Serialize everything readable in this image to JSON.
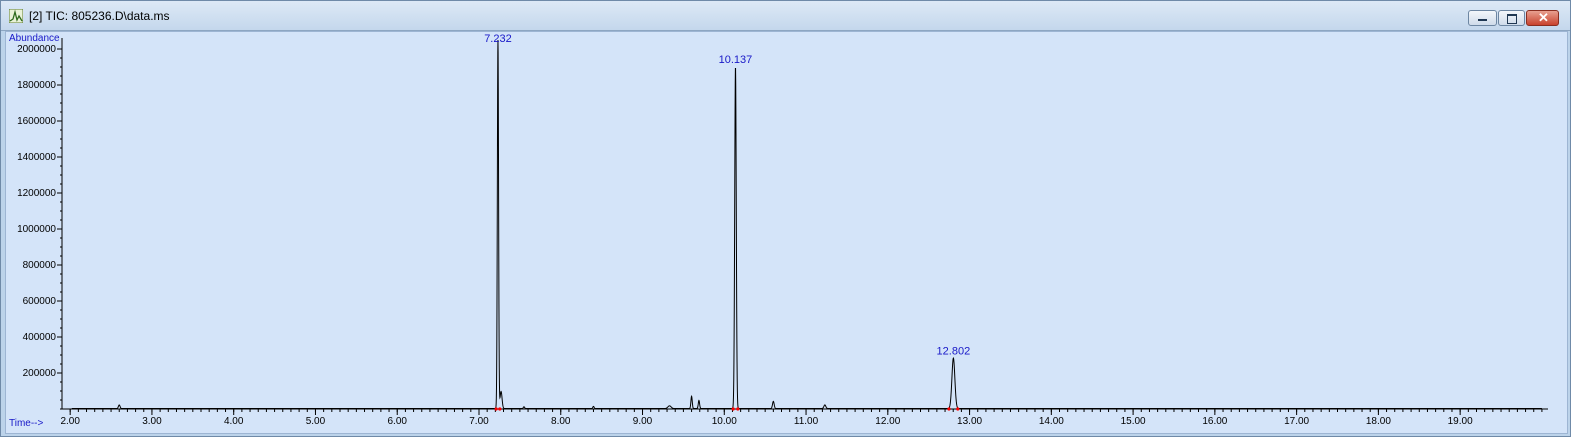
{
  "window": {
    "title": "[2] TIC: 805236.D\\data.ms",
    "icon": "chromatogram-app-icon",
    "controls": [
      "minimize",
      "maximize",
      "close"
    ]
  },
  "colors": {
    "plot_bg": "#d4e4f9",
    "trace": "#000000",
    "label": "#1818c8",
    "baseline_marker": "#ff0000"
  },
  "chart_data": {
    "type": "line",
    "title": "TIC: 805236.D\\data.ms",
    "ylabel": "Abundance",
    "xlabel": "Time-->",
    "xlim": [
      1.9,
      20.05
    ],
    "ylim": [
      0,
      2050000
    ],
    "x_ticks": [
      "2.00",
      "3.00",
      "4.00",
      "5.00",
      "6.00",
      "7.00",
      "8.00",
      "9.00",
      "10.00",
      "11.00",
      "12.00",
      "13.00",
      "14.00",
      "15.00",
      "16.00",
      "17.00",
      "18.00",
      "19.00"
    ],
    "y_ticks": [
      "200000",
      "400000",
      "600000",
      "800000",
      "1000000",
      "1200000",
      "1400000",
      "1600000",
      "1800000",
      "2000000"
    ],
    "grid": false,
    "peaks": [
      {
        "rt": 2.6,
        "height": 20000,
        "sigma": 0.01
      },
      {
        "rt": 7.232,
        "height": 2050000,
        "sigma": 0.0075
      },
      {
        "rt": 7.27,
        "height": 95000,
        "sigma": 0.012
      },
      {
        "rt": 7.55,
        "height": 10000,
        "sigma": 0.008
      },
      {
        "rt": 8.4,
        "height": 12000,
        "sigma": 0.008
      },
      {
        "rt": 9.33,
        "height": 15000,
        "sigma": 0.02
      },
      {
        "rt": 9.6,
        "height": 68000,
        "sigma": 0.008
      },
      {
        "rt": 9.69,
        "height": 45000,
        "sigma": 0.008
      },
      {
        "rt": 10.137,
        "height": 1900000,
        "sigma": 0.0095
      },
      {
        "rt": 10.6,
        "height": 40000,
        "sigma": 0.01
      },
      {
        "rt": 11.23,
        "height": 20000,
        "sigma": 0.012
      },
      {
        "rt": 12.802,
        "height": 280000,
        "sigma": 0.018
      }
    ],
    "peak_labels": [
      {
        "rt": 7.232,
        "label": "7.232"
      },
      {
        "rt": 10.137,
        "label": "10.137"
      },
      {
        "rt": 12.802,
        "label": "12.802"
      }
    ]
  }
}
